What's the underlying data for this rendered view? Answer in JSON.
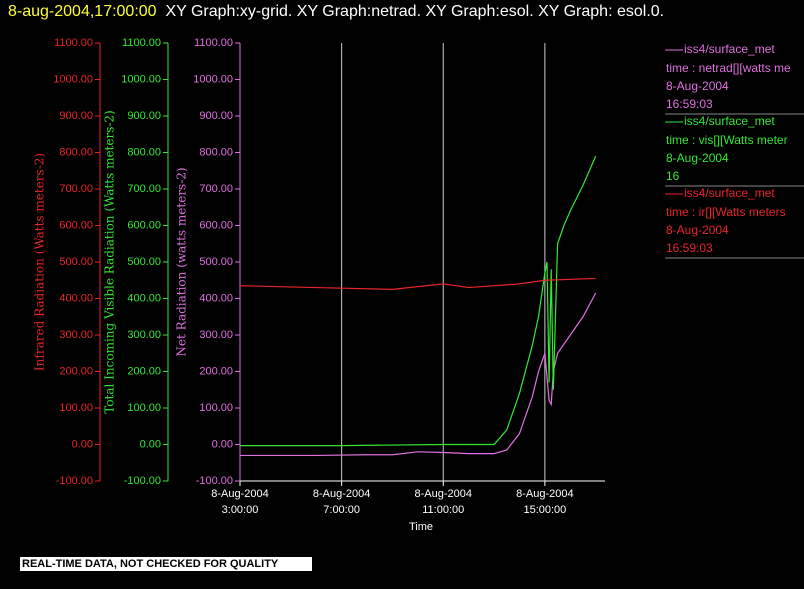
{
  "header": {
    "timestamp": "8-aug-2004,17:00:00",
    "title": "XY Graph:xy-grid.  XY Graph:netrad.  XY Graph:esol.  XY Graph: esol.0."
  },
  "chart_data": {
    "type": "line",
    "x_label": "Time",
    "xlim": [
      "2004-08-08T03:00",
      "2004-08-08T17:22"
    ],
    "xticks": [
      {
        "value": "2004-08-08T03:00",
        "label": "8-Aug-2004 3:00:00"
      },
      {
        "value": "2004-08-08T07:00",
        "label": "8-Aug-2004 7:00:00"
      },
      {
        "value": "2004-08-08T11:00",
        "label": "8-Aug-2004 11:00:00"
      },
      {
        "value": "2004-08-08T15:00",
        "label": "8-Aug-2004 15:00:00"
      }
    ],
    "grid": true,
    "ylim": [
      -100,
      1100
    ],
    "yticks": [
      {
        "value": -100,
        "label": "-100.00"
      },
      {
        "value": 0,
        "label": "0.00"
      },
      {
        "value": 100,
        "label": "100.00"
      },
      {
        "value": 200,
        "label": "200.00"
      },
      {
        "value": 300,
        "label": "300.00"
      },
      {
        "value": 400,
        "label": "400.00"
      },
      {
        "value": 500,
        "label": "500.00"
      },
      {
        "value": 600,
        "label": "600.00"
      },
      {
        "value": 700,
        "label": "700.00"
      },
      {
        "value": 800,
        "label": "800.00"
      },
      {
        "value": 900,
        "label": "900.00"
      },
      {
        "value": 1000,
        "label": "1000.00"
      },
      {
        "value": 1100,
        "label": "1100.00"
      }
    ],
    "y_axes": [
      {
        "label": "Infrared Radiation (Watts meters-2)",
        "color": "#e8242c"
      },
      {
        "label": "Total Incoming Visible Radiation (Watts meters-2)",
        "color": "#33e833"
      },
      {
        "label": "Net Radiation (watts meters-2)",
        "color": "#e070e0"
      }
    ],
    "series": [
      {
        "name": "iss4/surface_met",
        "color": "#e070e0",
        "legend_lines": [
          "time : netrad[][watts me",
          "8-Aug-2004",
          "16:59:03"
        ],
        "x": [
          "2004-08-08T03:00",
          "2004-08-08T06:00",
          "2004-08-08T08:00",
          "2004-08-08T09:00",
          "2004-08-08T10:00",
          "2004-08-08T11:00",
          "2004-08-08T12:00",
          "2004-08-08T13:00",
          "2004-08-08T13:30",
          "2004-08-08T14:00",
          "2004-08-08T14:30",
          "2004-08-08T14:45",
          "2004-08-08T15:00",
          "2004-08-08T15:10",
          "2004-08-08T15:15",
          "2004-08-08T15:20",
          "2004-08-08T15:30",
          "2004-08-08T16:00",
          "2004-08-08T16:30",
          "2004-08-08T17:00"
        ],
        "values": [
          -30,
          -30,
          -28,
          -28,
          -20,
          -22,
          -25,
          -25,
          -15,
          30,
          130,
          200,
          250,
          120,
          110,
          200,
          250,
          300,
          350,
          415
        ]
      },
      {
        "name": "iss4/surface_met",
        "color": "#33e833",
        "legend_lines": [
          "time : vis[][Watts meter",
          "8-Aug-2004",
          "16"
        ],
        "x": [
          "2004-08-08T03:00",
          "2004-08-08T07:00",
          "2004-08-08T11:00",
          "2004-08-08T13:00",
          "2004-08-08T13:30",
          "2004-08-08T14:00",
          "2004-08-08T14:30",
          "2004-08-08T14:45",
          "2004-08-08T15:00",
          "2004-08-08T15:05",
          "2004-08-08T15:10",
          "2004-08-08T15:15",
          "2004-08-08T15:20",
          "2004-08-08T15:30",
          "2004-08-08T15:45",
          "2004-08-08T16:00",
          "2004-08-08T16:30",
          "2004-08-08T17:00"
        ],
        "values": [
          -3,
          -3,
          0,
          0,
          40,
          140,
          270,
          350,
          470,
          500,
          170,
          480,
          150,
          550,
          600,
          640,
          710,
          790
        ]
      },
      {
        "name": "iss4/surface_met",
        "color": "#e8242c",
        "legend_lines": [
          "time : ir[][Watts meters",
          "8-Aug-2004",
          "16:59:03"
        ],
        "x": [
          "2004-08-08T03:00",
          "2004-08-08T06:00",
          "2004-08-08T09:00",
          "2004-08-08T11:00",
          "2004-08-08T12:00",
          "2004-08-08T14:00",
          "2004-08-08T15:00",
          "2004-08-08T17:00"
        ],
        "values": [
          435,
          430,
          425,
          440,
          430,
          440,
          450,
          455
        ]
      }
    ]
  },
  "footer": "REAL-TIME DATA, NOT CHECKED FOR QUALITY"
}
